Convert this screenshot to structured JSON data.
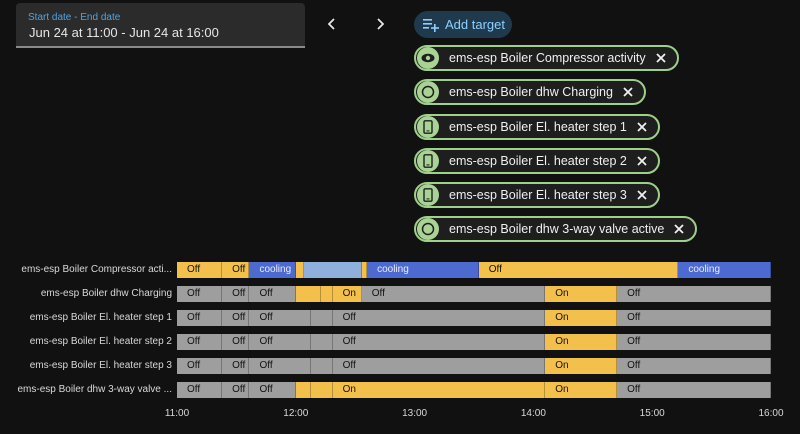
{
  "date_picker": {
    "label": "Start date - End date",
    "value": "Jun 24 at 11:00 - Jun 24 at 16:00"
  },
  "nav": {
    "prev_icon": "chevron-left-icon",
    "next_icon": "chevron-right-icon"
  },
  "add_target": {
    "label": "Add target",
    "icon": "playlist-plus-icon"
  },
  "chips": [
    {
      "label": "ems-esp Boiler Compressor activity",
      "icon": "eye-icon"
    },
    {
      "label": "ems-esp Boiler dhw Charging",
      "icon": "circle-icon"
    },
    {
      "label": "ems-esp Boiler El. heater step 1",
      "icon": "phone-icon"
    },
    {
      "label": "ems-esp Boiler El. heater step 2",
      "icon": "phone-icon"
    },
    {
      "label": "ems-esp Boiler El. heater step 3",
      "icon": "phone-icon"
    },
    {
      "label": "ems-esp Boiler dhw 3-way valve active",
      "icon": "circle-icon"
    }
  ],
  "timeline": {
    "rows": [
      {
        "label": "ems-esp Boiler Compressor acti...",
        "segments": [
          {
            "start": 0.0,
            "end": 0.076,
            "state": "on",
            "text": "Off"
          },
          {
            "start": 0.076,
            "end": 0.122,
            "state": "on",
            "text": "Off"
          },
          {
            "start": 0.122,
            "end": 0.2,
            "state": "cool",
            "text": "cooling"
          },
          {
            "start": 0.2,
            "end": 0.213,
            "state": "on",
            "text": ""
          },
          {
            "start": 0.213,
            "end": 0.311,
            "state": "light",
            "text": ""
          },
          {
            "start": 0.311,
            "end": 0.32,
            "state": "on",
            "text": ""
          },
          {
            "start": 0.32,
            "end": 0.508,
            "state": "cool",
            "text": "cooling"
          },
          {
            "start": 0.508,
            "end": 0.844,
            "state": "on",
            "text": "Off"
          },
          {
            "start": 0.844,
            "end": 1.0,
            "state": "cool",
            "text": "cooling"
          }
        ]
      },
      {
        "label": "ems-esp Boiler dhw Charging",
        "segments": [
          {
            "start": 0.0,
            "end": 0.076,
            "state": "off",
            "text": "Off"
          },
          {
            "start": 0.076,
            "end": 0.122,
            "state": "off",
            "text": "Off"
          },
          {
            "start": 0.122,
            "end": 0.2,
            "state": "off",
            "text": "Off"
          },
          {
            "start": 0.2,
            "end": 0.243,
            "state": "on",
            "text": ""
          },
          {
            "start": 0.243,
            "end": 0.262,
            "state": "on",
            "text": ""
          },
          {
            "start": 0.262,
            "end": 0.311,
            "state": "on",
            "text": "On"
          },
          {
            "start": 0.311,
            "end": 0.62,
            "state": "off",
            "text": "Off"
          },
          {
            "start": 0.62,
            "end": 0.741,
            "state": "on",
            "text": "On"
          },
          {
            "start": 0.741,
            "end": 1.0,
            "state": "off",
            "text": "Off"
          }
        ]
      },
      {
        "label": "ems-esp Boiler El. heater step 1",
        "segments": [
          {
            "start": 0.0,
            "end": 0.076,
            "state": "off",
            "text": "Off"
          },
          {
            "start": 0.076,
            "end": 0.122,
            "state": "off",
            "text": "Off"
          },
          {
            "start": 0.122,
            "end": 0.226,
            "state": "off",
            "text": "Off"
          },
          {
            "start": 0.226,
            "end": 0.262,
            "state": "off",
            "text": ""
          },
          {
            "start": 0.262,
            "end": 0.62,
            "state": "off",
            "text": "Off"
          },
          {
            "start": 0.62,
            "end": 0.741,
            "state": "on",
            "text": "On"
          },
          {
            "start": 0.741,
            "end": 1.0,
            "state": "off",
            "text": "Off"
          }
        ]
      },
      {
        "label": "ems-esp Boiler El. heater step 2",
        "segments": [
          {
            "start": 0.0,
            "end": 0.076,
            "state": "off",
            "text": "Off"
          },
          {
            "start": 0.076,
            "end": 0.122,
            "state": "off",
            "text": "Off"
          },
          {
            "start": 0.122,
            "end": 0.226,
            "state": "off",
            "text": "Off"
          },
          {
            "start": 0.226,
            "end": 0.262,
            "state": "off",
            "text": ""
          },
          {
            "start": 0.262,
            "end": 0.62,
            "state": "off",
            "text": "Off"
          },
          {
            "start": 0.62,
            "end": 0.741,
            "state": "on",
            "text": "On"
          },
          {
            "start": 0.741,
            "end": 1.0,
            "state": "off",
            "text": "Off"
          }
        ]
      },
      {
        "label": "ems-esp Boiler El. heater step 3",
        "segments": [
          {
            "start": 0.0,
            "end": 0.076,
            "state": "off",
            "text": "Off"
          },
          {
            "start": 0.076,
            "end": 0.122,
            "state": "off",
            "text": "Off"
          },
          {
            "start": 0.122,
            "end": 0.226,
            "state": "off",
            "text": "Off"
          },
          {
            "start": 0.226,
            "end": 0.262,
            "state": "off",
            "text": ""
          },
          {
            "start": 0.262,
            "end": 0.62,
            "state": "off",
            "text": "Off"
          },
          {
            "start": 0.62,
            "end": 0.741,
            "state": "on",
            "text": "On"
          },
          {
            "start": 0.741,
            "end": 1.0,
            "state": "off",
            "text": "Off"
          }
        ]
      },
      {
        "label": "ems-esp Boiler dhw 3-way valve ...",
        "segments": [
          {
            "start": 0.0,
            "end": 0.076,
            "state": "off",
            "text": "Off"
          },
          {
            "start": 0.076,
            "end": 0.122,
            "state": "off",
            "text": "Off"
          },
          {
            "start": 0.122,
            "end": 0.2,
            "state": "off",
            "text": "Off"
          },
          {
            "start": 0.2,
            "end": 0.226,
            "state": "on",
            "text": ""
          },
          {
            "start": 0.226,
            "end": 0.262,
            "state": "on",
            "text": ""
          },
          {
            "start": 0.262,
            "end": 0.62,
            "state": "on",
            "text": "On"
          },
          {
            "start": 0.62,
            "end": 0.741,
            "state": "on",
            "text": "On"
          },
          {
            "start": 0.741,
            "end": 1.0,
            "state": "off",
            "text": "Off"
          }
        ]
      }
    ],
    "ticks": [
      "11:00",
      "12:00",
      "13:00",
      "14:00",
      "15:00",
      "16:00"
    ]
  },
  "colors": {
    "on": "#f3c14b",
    "off": "#9e9e9e",
    "cooling": "#4d6ad0",
    "chip_border": "#9ed08a",
    "accent": "#4fa3e0"
  }
}
